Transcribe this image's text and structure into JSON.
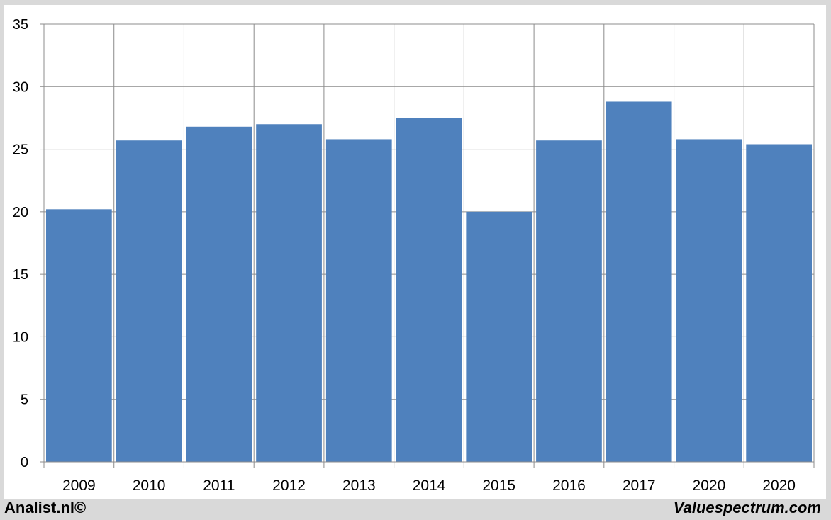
{
  "chart_data": {
    "type": "bar",
    "categories": [
      "2009",
      "2010",
      "2011",
      "2012",
      "2013",
      "2014",
      "2015",
      "2016",
      "2017",
      "2020",
      "2020"
    ],
    "values": [
      20.2,
      25.7,
      26.8,
      27.0,
      25.8,
      27.5,
      20.0,
      25.7,
      28.8,
      25.8,
      25.4
    ],
    "ylim": [
      0,
      35
    ],
    "yticks": [
      0,
      5,
      10,
      15,
      20,
      25,
      30,
      35
    ],
    "grid": true,
    "bar_color": "#4f81bd",
    "title": "",
    "xlabel": "",
    "ylabel": ""
  },
  "footer": {
    "left": "Analist.nl©",
    "right": "Valuespectrum.com"
  }
}
